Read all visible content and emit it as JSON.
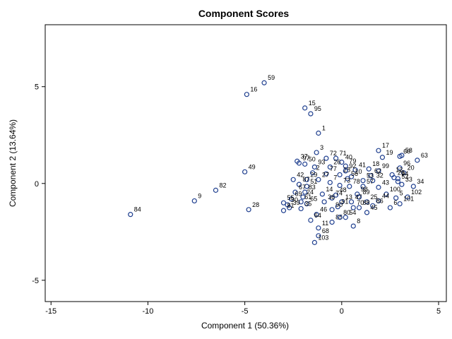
{
  "chart_data": {
    "type": "scatter",
    "title": "Component Scores",
    "xlabel": "Component 1 (50.36%)",
    "ylabel": "Component 2 (13.64%)",
    "xlim": [
      -15.3,
      5.4
    ],
    "ylim": [
      -6.1,
      8.2
    ],
    "xticks": [
      "-15",
      "-10",
      "-5",
      "0",
      "5"
    ],
    "yticks": [
      "-5",
      "0",
      "5"
    ],
    "grid": false,
    "legend": "none",
    "marker_color": "#1f3f8f",
    "points": [
      {
        "label": "59",
        "x": -4.0,
        "y": 5.2
      },
      {
        "label": "16",
        "x": -4.9,
        "y": 4.6
      },
      {
        "label": "15",
        "x": -1.9,
        "y": 3.9
      },
      {
        "label": "95",
        "x": -1.6,
        "y": 3.6
      },
      {
        "label": "1",
        "x": -1.2,
        "y": 2.6
      },
      {
        "label": "17",
        "x": 1.9,
        "y": 1.7
      },
      {
        "label": "58",
        "x": 3.1,
        "y": 1.45
      },
      {
        "label": "60",
        "x": 3.0,
        "y": 1.4
      },
      {
        "label": "63",
        "x": 3.9,
        "y": 1.2
      },
      {
        "label": "19",
        "x": 2.1,
        "y": 1.35
      },
      {
        "label": "3",
        "x": -1.3,
        "y": 1.6
      },
      {
        "label": "72",
        "x": -0.8,
        "y": 1.3
      },
      {
        "label": "71",
        "x": -0.3,
        "y": 1.3
      },
      {
        "label": "40",
        "x": 0.0,
        "y": 1.1
      },
      {
        "label": "37",
        "x": -2.3,
        "y": 1.15
      },
      {
        "label": "50",
        "x": -1.9,
        "y": 1.0
      },
      {
        "label": "97",
        "x": -2.2,
        "y": 1.05
      },
      {
        "label": "93",
        "x": -1.4,
        "y": 0.85
      },
      {
        "label": "79",
        "x": 0.2,
        "y": 0.9
      },
      {
        "label": "26",
        "x": -0.6,
        "y": 0.85
      },
      {
        "label": "41",
        "x": 0.7,
        "y": 0.7
      },
      {
        "label": "18",
        "x": 1.4,
        "y": 0.75
      },
      {
        "label": "99",
        "x": 1.9,
        "y": 0.65
      },
      {
        "label": "96",
        "x": 3.0,
        "y": 0.8
      },
      {
        "label": "20",
        "x": 3.2,
        "y": 0.55
      },
      {
        "label": "12",
        "x": 2.6,
        "y": 0.45
      },
      {
        "label": "2",
        "x": -1.5,
        "y": 0.55
      },
      {
        "label": "77",
        "x": -0.8,
        "y": 0.5
      },
      {
        "label": "28",
        "x": -0.1,
        "y": 0.45
      },
      {
        "label": "92",
        "x": 0.2,
        "y": 0.65
      },
      {
        "label": "10",
        "x": 0.5,
        "y": 0.35
      },
      {
        "label": "62",
        "x": 1.5,
        "y": 0.4
      },
      {
        "label": "23",
        "x": 2.7,
        "y": 0.3
      },
      {
        "label": "94",
        "x": 2.9,
        "y": 0.25
      },
      {
        "label": "49",
        "x": -5.0,
        "y": 0.6
      },
      {
        "label": "42",
        "x": -2.5,
        "y": 0.2
      },
      {
        "label": "29",
        "x": -1.8,
        "y": 0.2
      },
      {
        "label": "27",
        "x": -1.2,
        "y": 0.2
      },
      {
        "label": "7",
        "x": -0.6,
        "y": 0.05
      },
      {
        "label": "56",
        "x": 0.3,
        "y": 0.25
      },
      {
        "label": "53",
        "x": 1.1,
        "y": 0.15
      },
      {
        "label": "32",
        "x": 1.6,
        "y": 0.15
      },
      {
        "label": "52",
        "x": 2.9,
        "y": 0.1
      },
      {
        "label": "33",
        "x": 3.1,
        "y": -0.05
      },
      {
        "label": "34",
        "x": 3.7,
        "y": -0.15
      },
      {
        "label": "87",
        "x": -2.2,
        "y": -0.05
      },
      {
        "label": "51",
        "x": -1.8,
        "y": -0.15
      },
      {
        "label": "73",
        "x": -0.1,
        "y": -0.1
      },
      {
        "label": "78",
        "x": 0.4,
        "y": -0.15
      },
      {
        "label": "57",
        "x": 1.1,
        "y": -0.15
      },
      {
        "label": "43",
        "x": 1.9,
        "y": -0.2
      },
      {
        "label": "82",
        "x": -6.5,
        "y": -0.35
      },
      {
        "label": "83",
        "x": -1.9,
        "y": -0.45
      },
      {
        "label": "67",
        "x": -2.4,
        "y": -0.45
      },
      {
        "label": "14",
        "x": -1.0,
        "y": -0.55
      },
      {
        "label": "48",
        "x": -0.3,
        "y": -0.6
      },
      {
        "label": "98",
        "x": 0.8,
        "y": -0.55
      },
      {
        "label": "100",
        "x": 2.3,
        "y": -0.55
      },
      {
        "label": "5",
        "x": 2.8,
        "y": -0.75
      },
      {
        "label": "9",
        "x": -7.6,
        "y": -0.9
      },
      {
        "label": "24",
        "x": -2.0,
        "y": -0.7
      },
      {
        "label": "69",
        "x": -2.6,
        "y": -0.8
      },
      {
        "label": "74",
        "x": -0.5,
        "y": -0.75
      },
      {
        "label": "89",
        "x": 0.9,
        "y": -0.7
      },
      {
        "label": "102",
        "x": 3.4,
        "y": -0.7
      },
      {
        "label": "55",
        "x": -3.0,
        "y": -1.0
      },
      {
        "label": "61",
        "x": -2.1,
        "y": -0.95
      },
      {
        "label": "36",
        "x": -0.9,
        "y": -0.95
      },
      {
        "label": "13",
        "x": 0.0,
        "y": -0.95
      },
      {
        "label": "47",
        "x": 0.5,
        "y": -0.95
      },
      {
        "label": "25",
        "x": 1.3,
        "y": -0.95
      },
      {
        "label": "44",
        "x": 1.9,
        "y": -0.9
      },
      {
        "label": "101",
        "x": 3.0,
        "y": -1.05
      },
      {
        "label": "30",
        "x": -2.8,
        "y": -1.1
      },
      {
        "label": "65",
        "x": -1.8,
        "y": -1.05
      },
      {
        "label": "91",
        "x": -0.2,
        "y": -1.2
      },
      {
        "label": "70",
        "x": 0.6,
        "y": -1.25
      },
      {
        "label": "88",
        "x": 0.9,
        "y": -1.25
      },
      {
        "label": "86",
        "x": 1.6,
        "y": -1.15
      },
      {
        "label": "39",
        "x": -2.7,
        "y": -1.25
      },
      {
        "label": "35",
        "x": -2.1,
        "y": -1.3
      },
      {
        "label": "90",
        "x": -0.5,
        "y": -1.35
      },
      {
        "label": "6",
        "x": 2.5,
        "y": -1.25
      },
      {
        "label": "28",
        "x": -4.8,
        "y": -1.35
      },
      {
        "label": "81",
        "x": -3.0,
        "y": -1.4
      },
      {
        "label": "84",
        "x": -10.9,
        "y": -1.6
      },
      {
        "label": "46",
        "x": -1.3,
        "y": -1.6
      },
      {
        "label": "45",
        "x": 1.3,
        "y": -1.5
      },
      {
        "label": "54",
        "x": 0.2,
        "y": -1.75
      },
      {
        "label": "64",
        "x": -1.6,
        "y": -1.9
      },
      {
        "label": "85",
        "x": -0.5,
        "y": -2.0
      },
      {
        "label": "80",
        "x": -0.1,
        "y": -1.75
      },
      {
        "label": "11",
        "x": -1.2,
        "y": -2.3
      },
      {
        "label": "8",
        "x": 0.6,
        "y": -2.2
      },
      {
        "label": "68",
        "x": -1.2,
        "y": -2.7
      },
      {
        "label": "103",
        "x": -1.4,
        "y": -3.05
      }
    ]
  }
}
